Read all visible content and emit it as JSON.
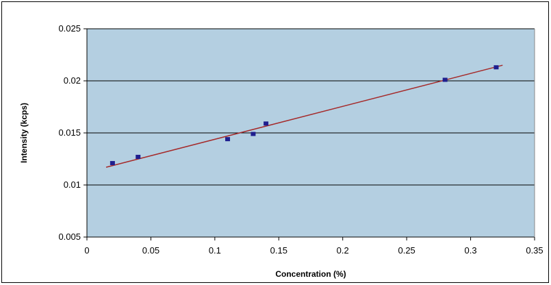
{
  "chart_data": {
    "type": "scatter",
    "title": "",
    "xlabel": "Concentration (%)",
    "ylabel": "Intensity (kcps)",
    "xlim": [
      0,
      0.35
    ],
    "ylim": [
      0.005,
      0.025
    ],
    "x_ticks": [
      "0",
      "0.05",
      "0.1",
      "0.15",
      "0.2",
      "0.25",
      "0.3",
      "0.35"
    ],
    "y_ticks": [
      "0.005",
      "0.01",
      "0.015",
      "0.02",
      "0.025"
    ],
    "grid": "horizontal major gridlines",
    "legend": "none",
    "series": [
      {
        "x": [
          0.02,
          0.04,
          0.11,
          0.13,
          0.14,
          0.28,
          0.32
        ],
        "y": [
          0.0121,
          0.0127,
          0.0144,
          0.0149,
          0.0159,
          0.0201,
          0.0213
        ]
      }
    ],
    "trendline": {
      "type": "linear",
      "x": [
        0.015,
        0.325
      ],
      "y": [
        0.0117,
        0.0215
      ]
    },
    "colors": {
      "plot_area": "#b4cfe1",
      "marker": "#1f1f8f",
      "trendline": "#a52a2a",
      "grid": "#000000"
    }
  }
}
